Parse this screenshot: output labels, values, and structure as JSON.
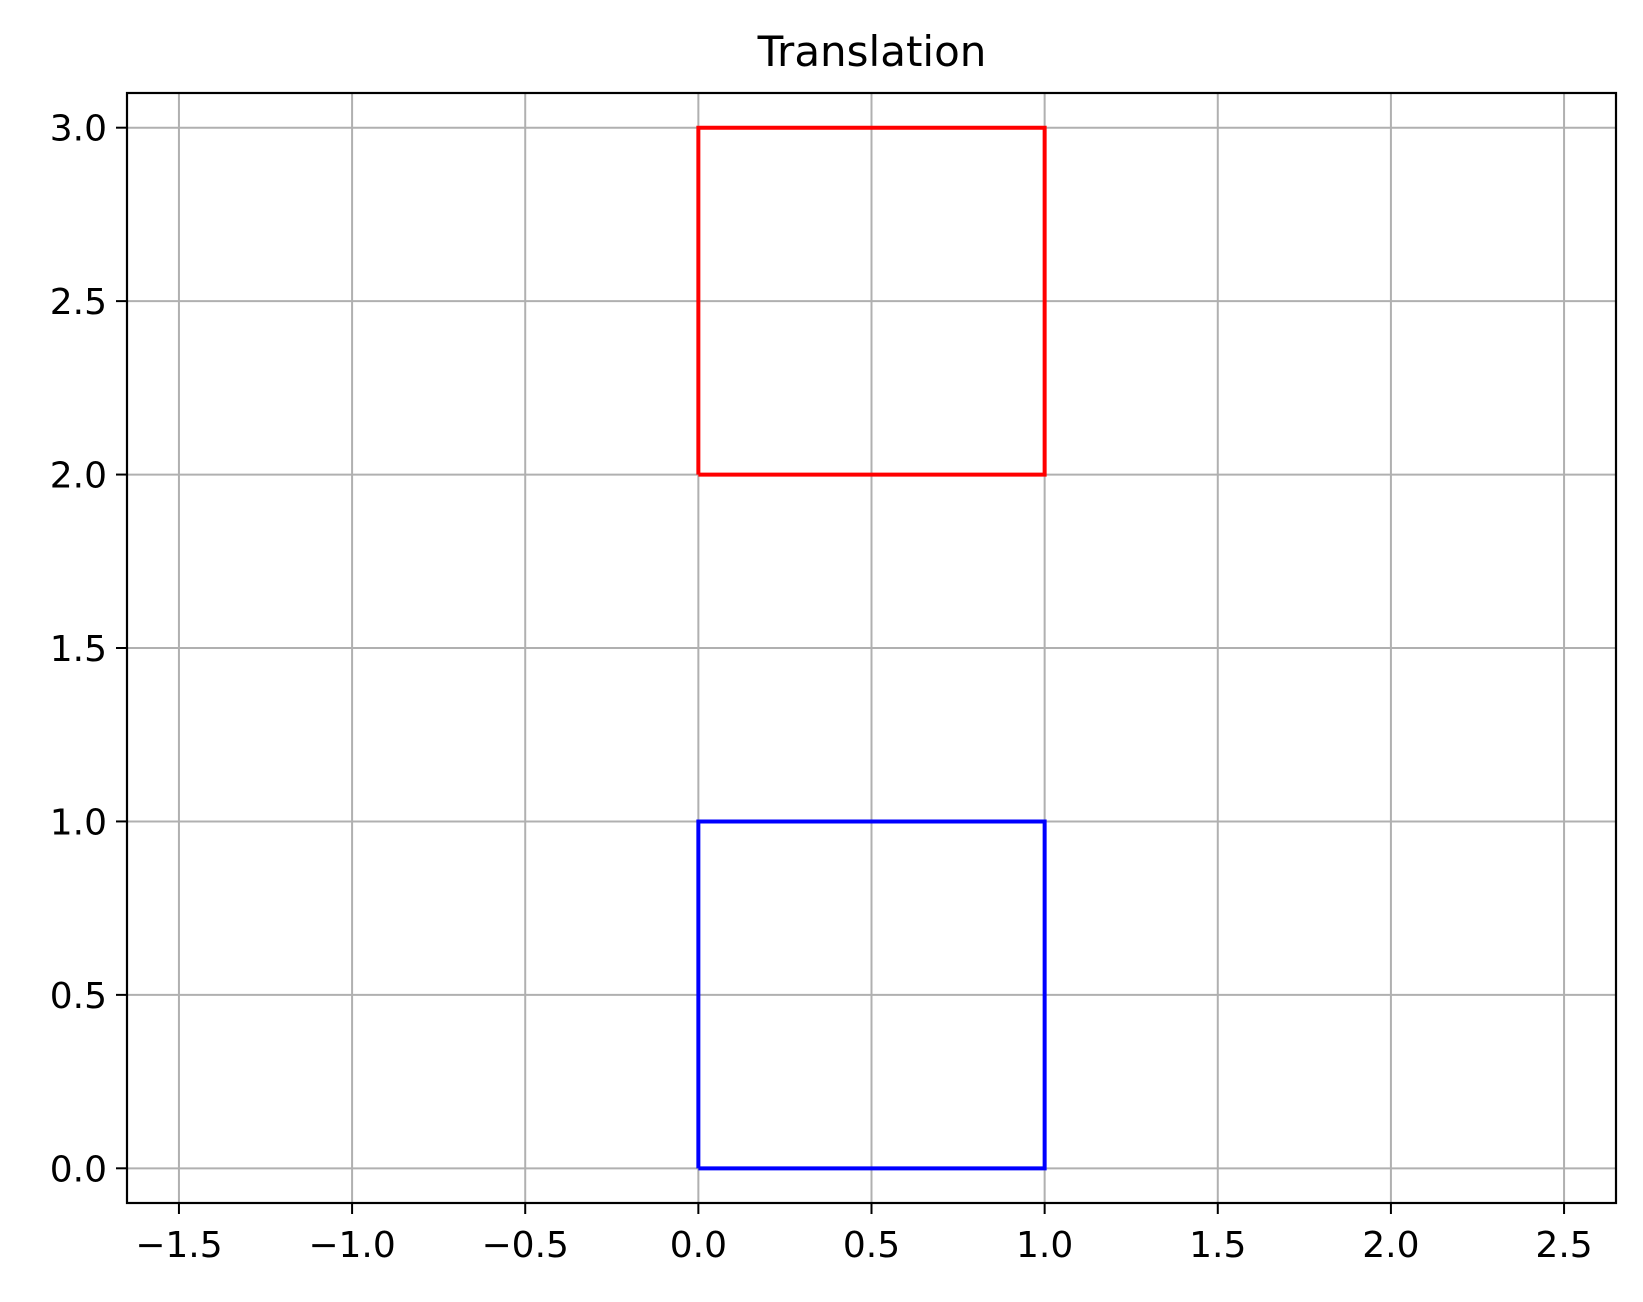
{
  "chart_data": {
    "type": "line",
    "title": "Translation",
    "xlabel": "",
    "ylabel": "",
    "xlim": [
      -1.65,
      2.65
    ],
    "ylim": [
      -0.1,
      3.1
    ],
    "grid": true,
    "x_ticks": [
      -1.5,
      -1.0,
      -0.5,
      0.0,
      0.5,
      1.0,
      1.5,
      2.0,
      2.5
    ],
    "x_tick_labels": [
      "−1.5",
      "−1.0",
      "−0.5",
      "0.0",
      "0.5",
      "1.0",
      "1.5",
      "2.0",
      "2.5"
    ],
    "y_ticks": [
      0.0,
      0.5,
      1.0,
      1.5,
      2.0,
      2.5,
      3.0
    ],
    "y_tick_labels": [
      "0.0",
      "0.5",
      "1.0",
      "1.5",
      "2.0",
      "2.5",
      "3.0"
    ],
    "series": [
      {
        "color": "#0000ff",
        "x": [
          0,
          1,
          1,
          0,
          0
        ],
        "y": [
          0,
          0,
          1,
          1,
          0
        ]
      },
      {
        "color": "#ff0000",
        "x": [
          0,
          1,
          1,
          0,
          0
        ],
        "y": [
          2,
          2,
          3,
          3,
          2
        ]
      }
    ]
  }
}
